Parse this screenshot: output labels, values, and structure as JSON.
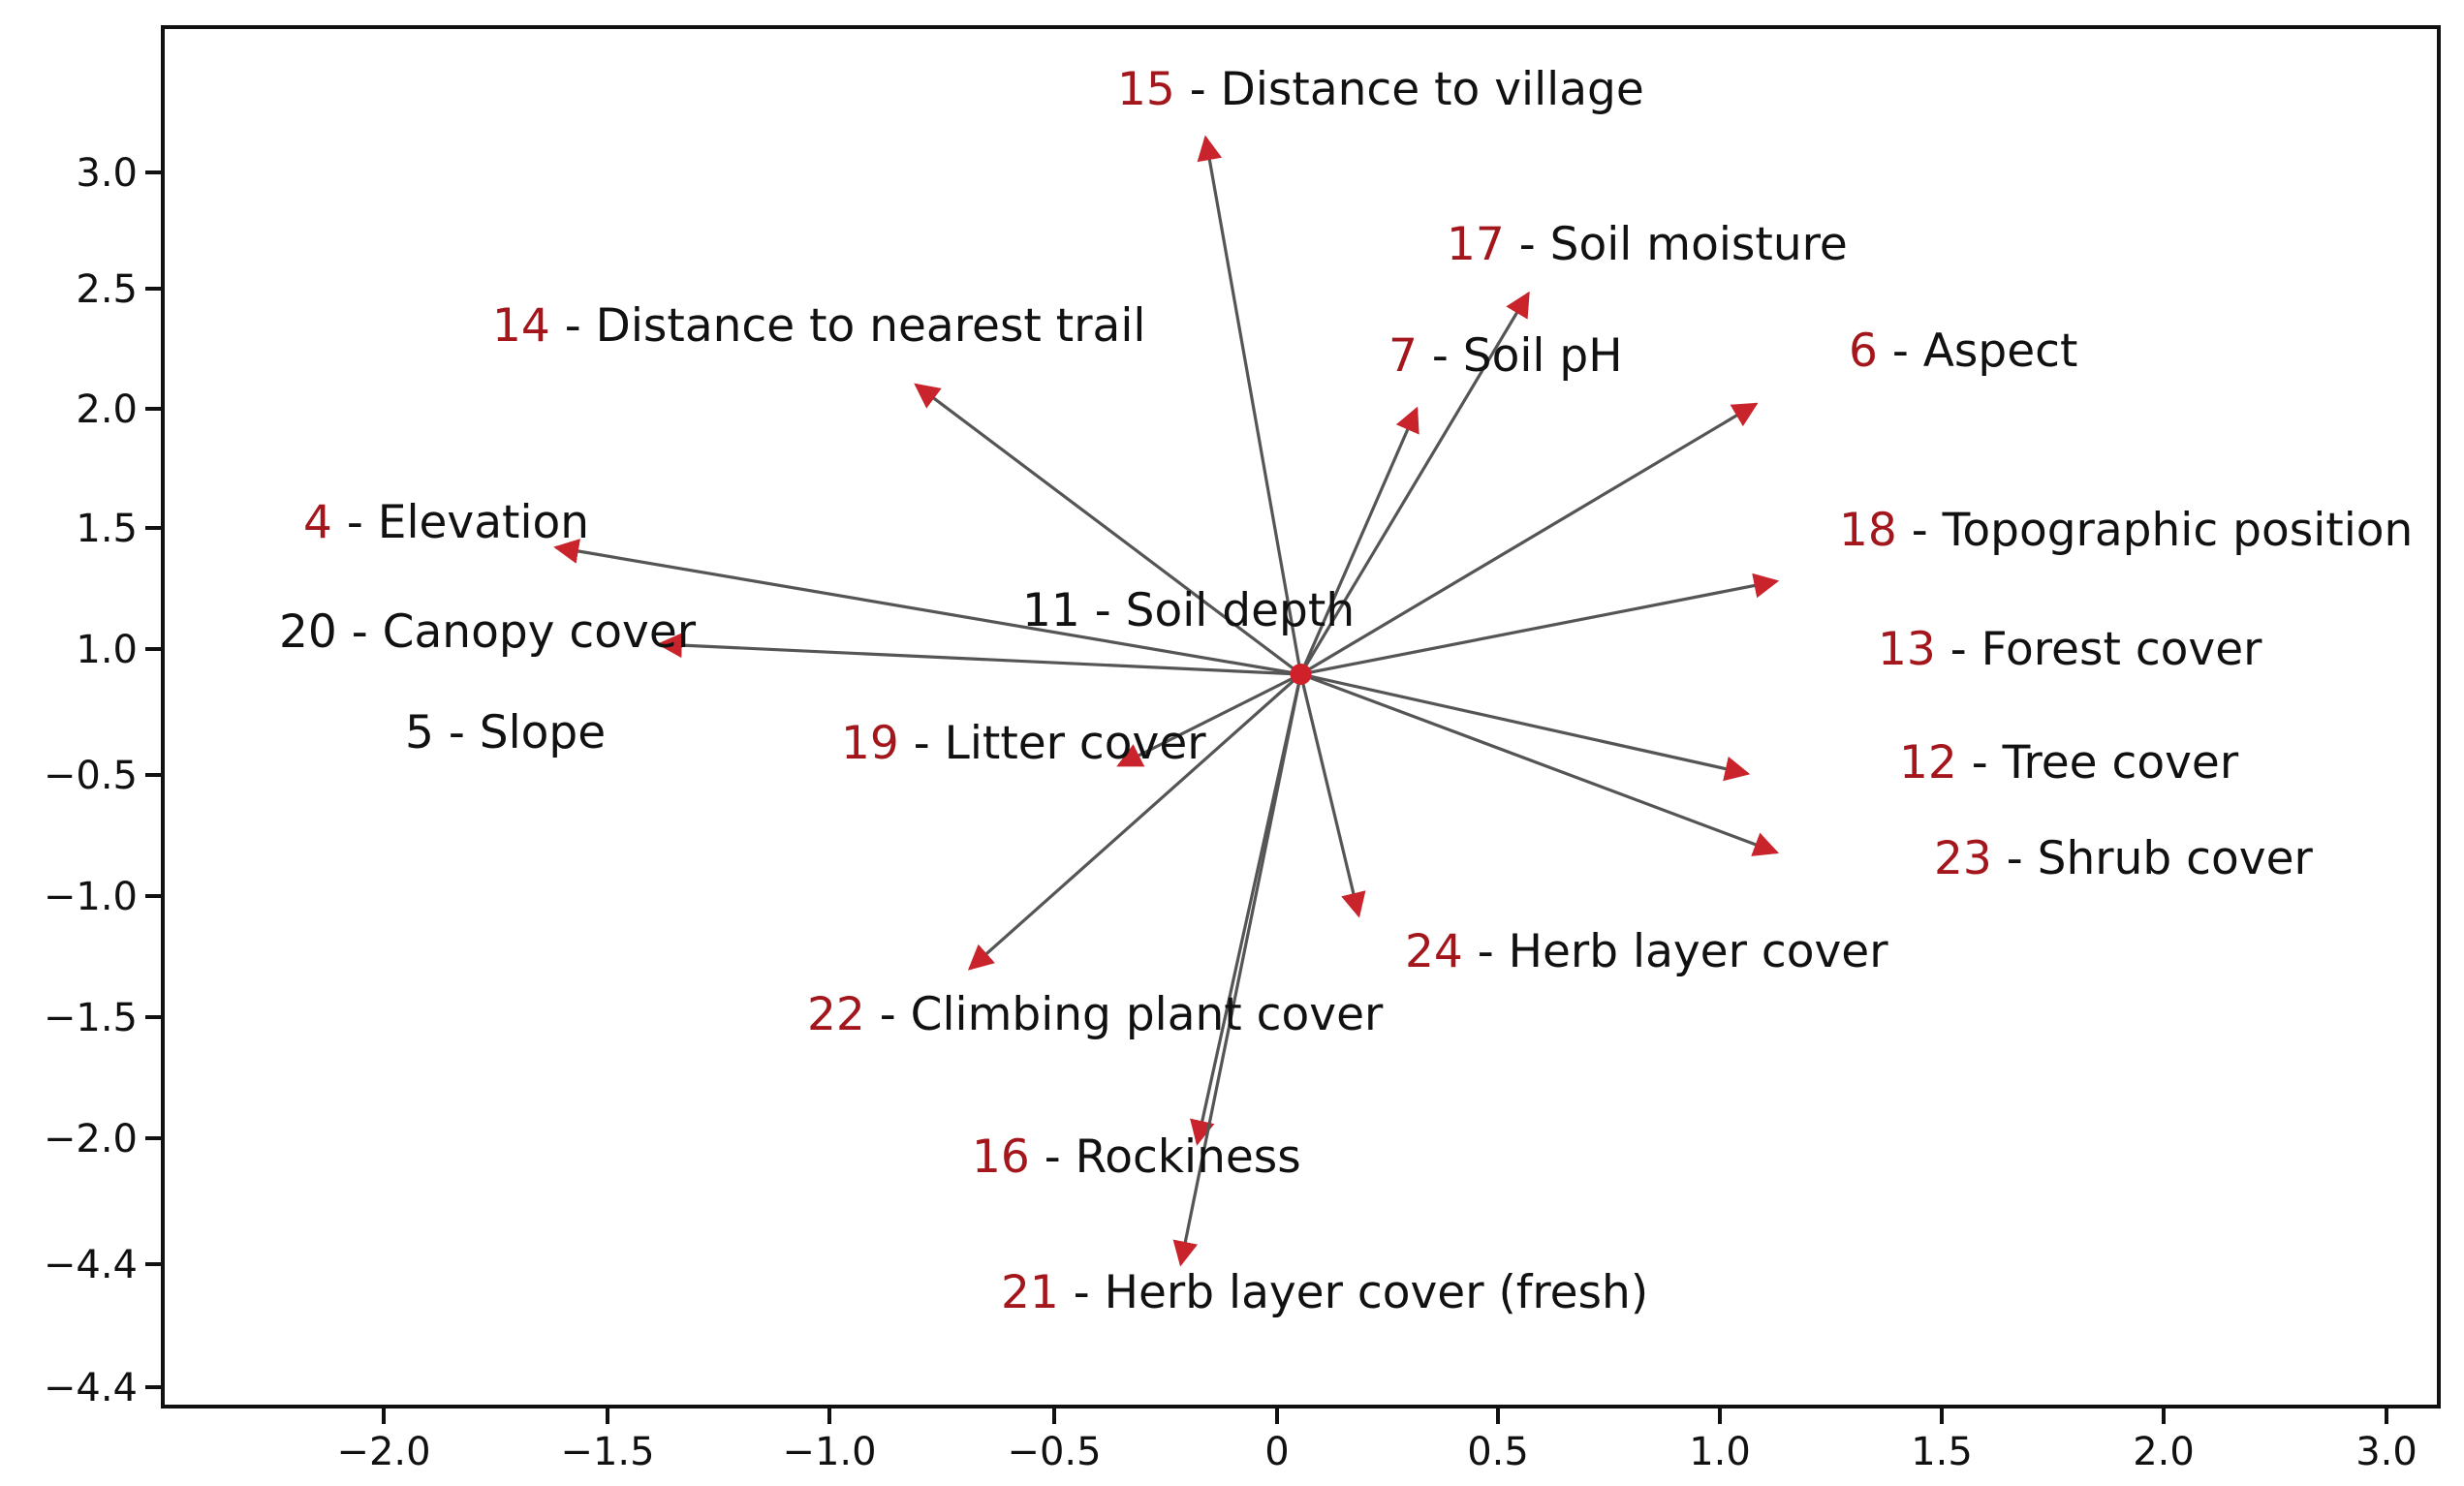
{
  "colors": {
    "arrow": "#555555",
    "arrowhead": "#c9242b",
    "number": "#a3161c",
    "text": "#111111",
    "axis": "#111111",
    "origin_marker": "#d0202a"
  },
  "chart_data": {
    "type": "scatter",
    "subtype": "biplot-vectors",
    "title": "",
    "xlabel": "",
    "ylabel": "",
    "grid": false,
    "legend": "none",
    "xlim": [
      -2.45,
      3.05
    ],
    "x_ticks": [
      "-2.0",
      "-1.5",
      "-1.0",
      "-0.5",
      "0",
      "0.5",
      "1.0",
      "1.5",
      "2.0",
      "3.0"
    ],
    "y_ticks": [
      "3.0",
      "2.5",
      "2.0",
      "1.5",
      "1.0",
      "-0.5",
      "-1.0",
      "-1.5",
      "-2.0",
      "-4.4",
      "-4.4"
    ],
    "origin": {
      "x": 0.3,
      "y": 0.8
    },
    "vectors": [
      {
        "num": "15",
        "name": "Distance to village",
        "x": 0.07,
        "y": 3.15
      },
      {
        "num": "17",
        "name": "Soil moisture",
        "x": 0.85,
        "y": 2.48
      },
      {
        "num": "7",
        "name": "Soil pH",
        "x": 0.58,
        "y": 2.0
      },
      {
        "num": "6",
        "name": "Aspect",
        "x": 1.4,
        "y": 2.02
      },
      {
        "num": "14",
        "name": "Distance to nearest trail",
        "x": -0.63,
        "y": 2.1
      },
      {
        "num": "4",
        "name": "Elevation",
        "x": -1.5,
        "y": 1.42
      },
      {
        "num": "20",
        "name": "Canopy cover",
        "x": -1.25,
        "y": 1.02
      },
      {
        "num": "11",
        "name": "Soil depth",
        "x": null,
        "y": null
      },
      {
        "num": "5",
        "name": "Slope",
        "x": null,
        "y": null
      },
      {
        "num": "19",
        "name": "Litter cover",
        "x": -0.14,
        "y": -0.35
      },
      {
        "num": "18",
        "name": "Topographic position",
        "x": 1.45,
        "y": 1.28
      },
      {
        "num": "13",
        "name": "Forest cover",
        "x": null,
        "y": null
      },
      {
        "num": "12",
        "name": "Tree cover",
        "x": 1.38,
        "y": -0.48
      },
      {
        "num": "23",
        "name": "Shrub cover",
        "x": 1.45,
        "y": -0.82
      },
      {
        "num": "24",
        "name": "Herb layer cover",
        "x": 0.44,
        "y": -1.08
      },
      {
        "num": "22",
        "name": "Climbing plant cover",
        "x": -0.5,
        "y": -1.3
      },
      {
        "num": "16",
        "name": "Rockiness",
        "x": 0.05,
        "y": -2.02
      },
      {
        "num": "21",
        "name": "Herb layer cover (fresh)",
        "x": 0.01,
        "y": -2.5
      }
    ]
  }
}
